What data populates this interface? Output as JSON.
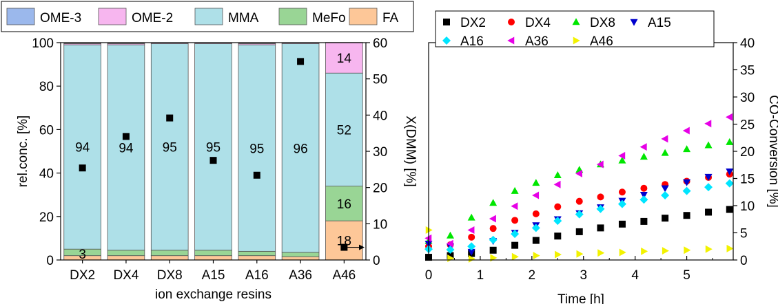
{
  "chart_data": [
    {
      "type": "bar",
      "stacked": true,
      "xlabel": "ion exchange resins",
      "ylabel": "rel.conc. [%]",
      "y2label": "X(DMM) [%]",
      "categories": [
        "DX2",
        "DX4",
        "DX8",
        "A15",
        "A16",
        "A36",
        "A46"
      ],
      "ylim": [
        0,
        100
      ],
      "y2lim": [
        0,
        60
      ],
      "yticks": [
        "0",
        "20",
        "40",
        "60",
        "80",
        "100"
      ],
      "y2ticks": [
        "0",
        "10",
        "20",
        "30",
        "40",
        "50",
        "60"
      ],
      "legend_position": "top",
      "series": [
        {
          "name": "FA",
          "color": "#fdc798",
          "values": [
            2,
            2,
            2,
            2,
            2,
            1.5,
            18
          ]
        },
        {
          "name": "MeFo",
          "color": "#99d595",
          "values": [
            3,
            2.5,
            2.5,
            2.5,
            2,
            2,
            16
          ]
        },
        {
          "name": "MMA",
          "color": "#aee0e8",
          "values": [
            94,
            94.5,
            95,
            95,
            95,
            96,
            52
          ]
        },
        {
          "name": "OME-2",
          "color": "#f7b6ef",
          "values": [
            0.6,
            0.6,
            0.4,
            0.4,
            0.6,
            0.4,
            14
          ]
        },
        {
          "name": "OME-3",
          "color": "#9bb8ec",
          "values": [
            0.1,
            0.1,
            0.1,
            0.1,
            0.1,
            0.1,
            0.1
          ]
        }
      ],
      "bar_labels": [
        {
          "series": "FA",
          "category": "A46",
          "text": "18"
        },
        {
          "series": "MeFo",
          "category": "DX2",
          "text": "3"
        },
        {
          "series": "MeFo",
          "category": "A46",
          "text": "16"
        },
        {
          "series": "MMA",
          "category": "DX2",
          "text": "94"
        },
        {
          "series": "MMA",
          "category": "DX4",
          "text": "94"
        },
        {
          "series": "MMA",
          "category": "DX8",
          "text": "95"
        },
        {
          "series": "MMA",
          "category": "A15",
          "text": "95"
        },
        {
          "series": "MMA",
          "category": "A16",
          "text": "95"
        },
        {
          "series": "MMA",
          "category": "A36",
          "text": "96"
        },
        {
          "series": "MMA",
          "category": "A46",
          "text": "52"
        },
        {
          "series": "OME-2",
          "category": "A46",
          "text": "14"
        }
      ],
      "x_dmm": [
        25.4,
        34.1,
        39.2,
        27.5,
        23.4,
        54.8,
        3.5
      ]
    },
    {
      "type": "scatter",
      "xlabel": "Time [h]",
      "ylabel": "CO-Conversion [%]",
      "xlim": [
        0,
        5.9
      ],
      "ylim": [
        0,
        40
      ],
      "xticks": [
        "0",
        "1",
        "2",
        "3",
        "4",
        "5"
      ],
      "yticks": [
        "0",
        "5",
        "10",
        "15",
        "20",
        "25",
        "30",
        "35",
        "40"
      ],
      "legend_position": "top",
      "x": [
        0.0,
        0.42,
        0.83,
        1.25,
        1.67,
        2.08,
        2.5,
        2.92,
        3.33,
        3.75,
        4.17,
        4.58,
        5.0,
        5.42,
        5.83
      ],
      "series": [
        {
          "name": "DX2",
          "color": "#000000",
          "marker": "square",
          "values": [
            0.5,
            0.8,
            1.2,
            1.8,
            2.7,
            3.6,
            4.4,
            5.2,
            5.9,
            6.6,
            7.1,
            7.7,
            8.2,
            8.8,
            9.3
          ]
        },
        {
          "name": "DX4",
          "color": "#ff0000",
          "marker": "circle",
          "values": [
            2.5,
            2.8,
            4.2,
            5.8,
            7.3,
            8.5,
            9.8,
            10.8,
            11.6,
            12.5,
            13.2,
            13.9,
            14.5,
            15.2,
            15.8
          ]
        },
        {
          "name": "DX8",
          "color": "#00e600",
          "marker": "triangle-up",
          "values": [
            3.5,
            4.5,
            7.8,
            10.5,
            12.7,
            14.2,
            15.6,
            16.6,
            17.6,
            18.3,
            19.0,
            19.7,
            20.4,
            21.1,
            21.7
          ]
        },
        {
          "name": "A15",
          "color": "#0000cd",
          "marker": "triangle-down",
          "values": [
            3.0,
            2.5,
            1.5,
            3.5,
            5.0,
            6.4,
            7.5,
            8.6,
            9.7,
            10.9,
            12.0,
            13.2,
            14.3,
            15.3,
            16.3
          ]
        },
        {
          "name": "A16",
          "color": "#00e5ff",
          "marker": "diamond",
          "values": [
            2.0,
            1.9,
            2.5,
            3.7,
            4.8,
            5.9,
            7.2,
            8.4,
            9.4,
            10.3,
            11.1,
            11.9,
            12.7,
            13.4,
            14.1
          ]
        },
        {
          "name": "A36",
          "color": "#e600e6",
          "marker": "triangle-left",
          "values": [
            4.0,
            3.0,
            5.5,
            7.6,
            9.9,
            11.9,
            13.9,
            15.9,
            17.6,
            19.2,
            20.8,
            22.3,
            23.8,
            25.1,
            26.3
          ]
        },
        {
          "name": "A46",
          "color": "#f2f200",
          "marker": "triangle-right",
          "values": [
            5.5,
            0.3,
            0.2,
            0.4,
            0.6,
            0.8,
            1.0,
            1.1,
            1.3,
            1.4,
            1.6,
            1.7,
            1.8,
            2.0,
            2.1
          ]
        }
      ]
    }
  ]
}
